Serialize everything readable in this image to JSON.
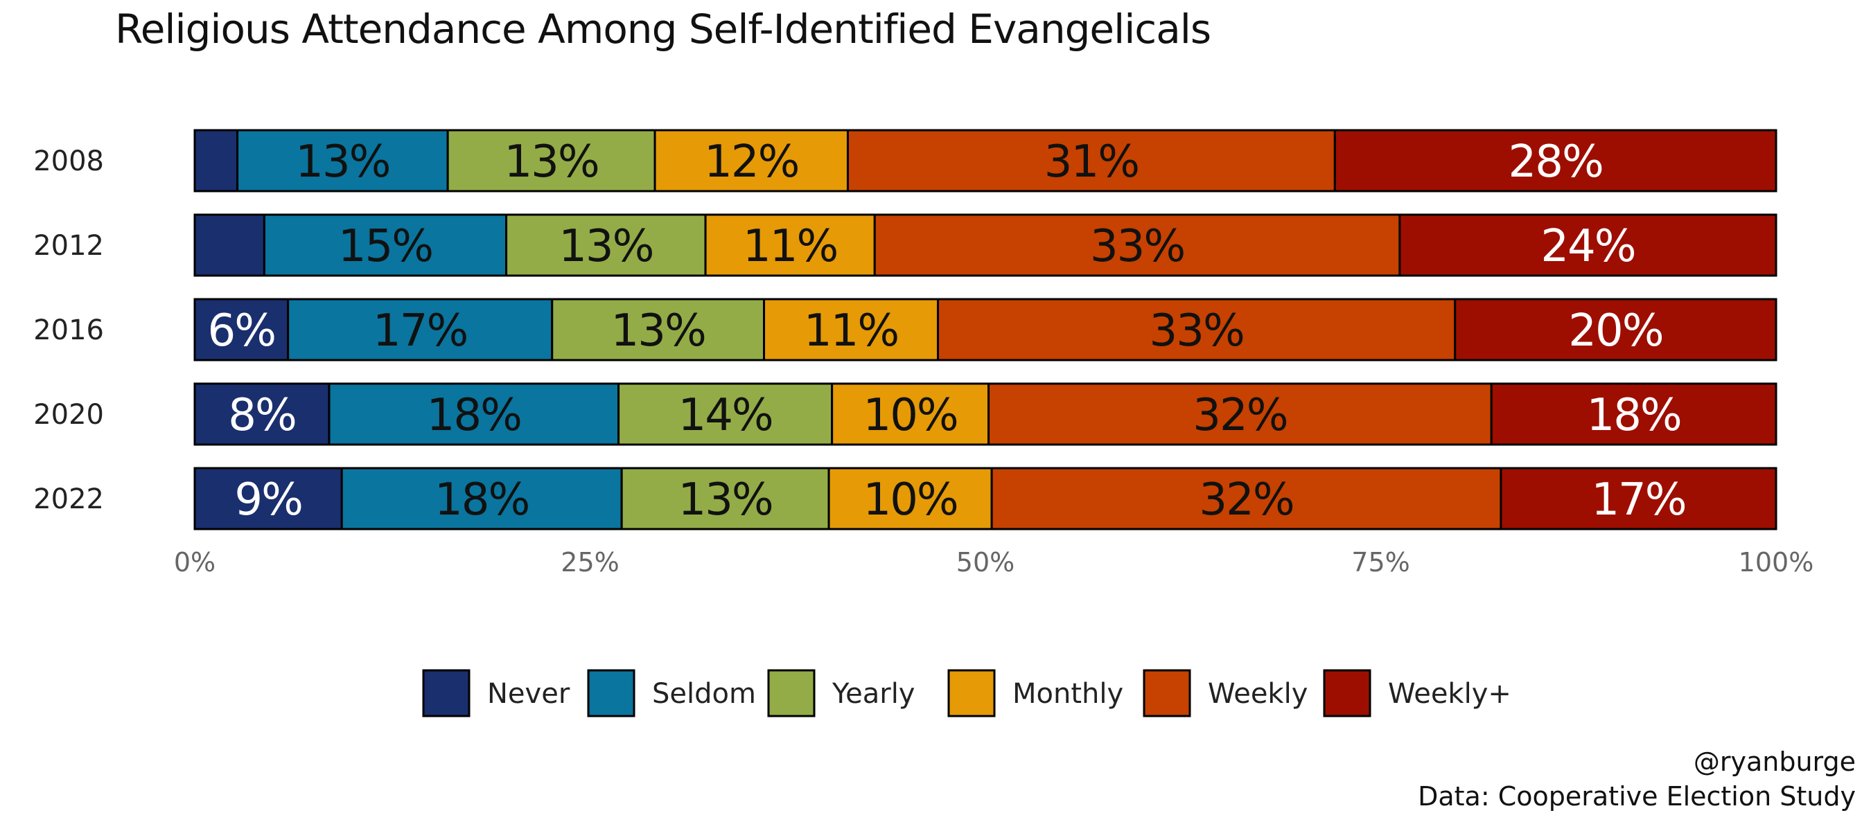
{
  "chart_data": {
    "type": "bar",
    "orientation": "horizontal",
    "stacked": true,
    "title": "Religious Attendance Among Self-Identified Evangelicals",
    "categories": [
      "2008",
      "2012",
      "2016",
      "2020",
      "2022"
    ],
    "series": [
      {
        "name": "Never",
        "color": "#1a2f6e",
        "label_color": "#ffffff",
        "values": [
          0.027,
          0.044,
          0.059,
          0.085,
          0.093
        ]
      },
      {
        "name": "Seldom",
        "color": "#0a759e",
        "label_color": "#111111",
        "values": [
          0.133,
          0.153,
          0.167,
          0.183,
          0.177
        ]
      },
      {
        "name": "Yearly",
        "color": "#93ac47",
        "label_color": "#111111",
        "values": [
          0.131,
          0.126,
          0.134,
          0.135,
          0.131
        ]
      },
      {
        "name": "Monthly",
        "color": "#e59a06",
        "label_color": "#111111",
        "values": [
          0.122,
          0.107,
          0.11,
          0.099,
          0.103
        ]
      },
      {
        "name": "Weekly",
        "color": "#c74100",
        "label_color": "#111111",
        "values": [
          0.308,
          0.332,
          0.327,
          0.318,
          0.322
        ]
      },
      {
        "name": "Weekly+",
        "color": "#9e0e00",
        "label_color": "#ffffff",
        "values": [
          0.279,
          0.238,
          0.203,
          0.18,
          0.174
        ]
      }
    ],
    "labels": [
      [
        "",
        "13%",
        "13%",
        "12%",
        "31%",
        "28%"
      ],
      [
        "",
        "15%",
        "13%",
        "11%",
        "33%",
        "24%"
      ],
      [
        "6%",
        "17%",
        "13%",
        "11%",
        "33%",
        "20%"
      ],
      [
        "8%",
        "18%",
        "14%",
        "10%",
        "32%",
        "18%"
      ],
      [
        "9%",
        "18%",
        "13%",
        "10%",
        "32%",
        "17%"
      ]
    ],
    "xticks": [
      "0%",
      "25%",
      "50%",
      "75%",
      "100%"
    ],
    "xlim": [
      0,
      1
    ],
    "xlabel": "",
    "ylabel": "",
    "grid": false,
    "legend_position": "bottom"
  },
  "caption": {
    "handle": "@ryanburge",
    "source": "Data: Cooperative Election Study"
  }
}
